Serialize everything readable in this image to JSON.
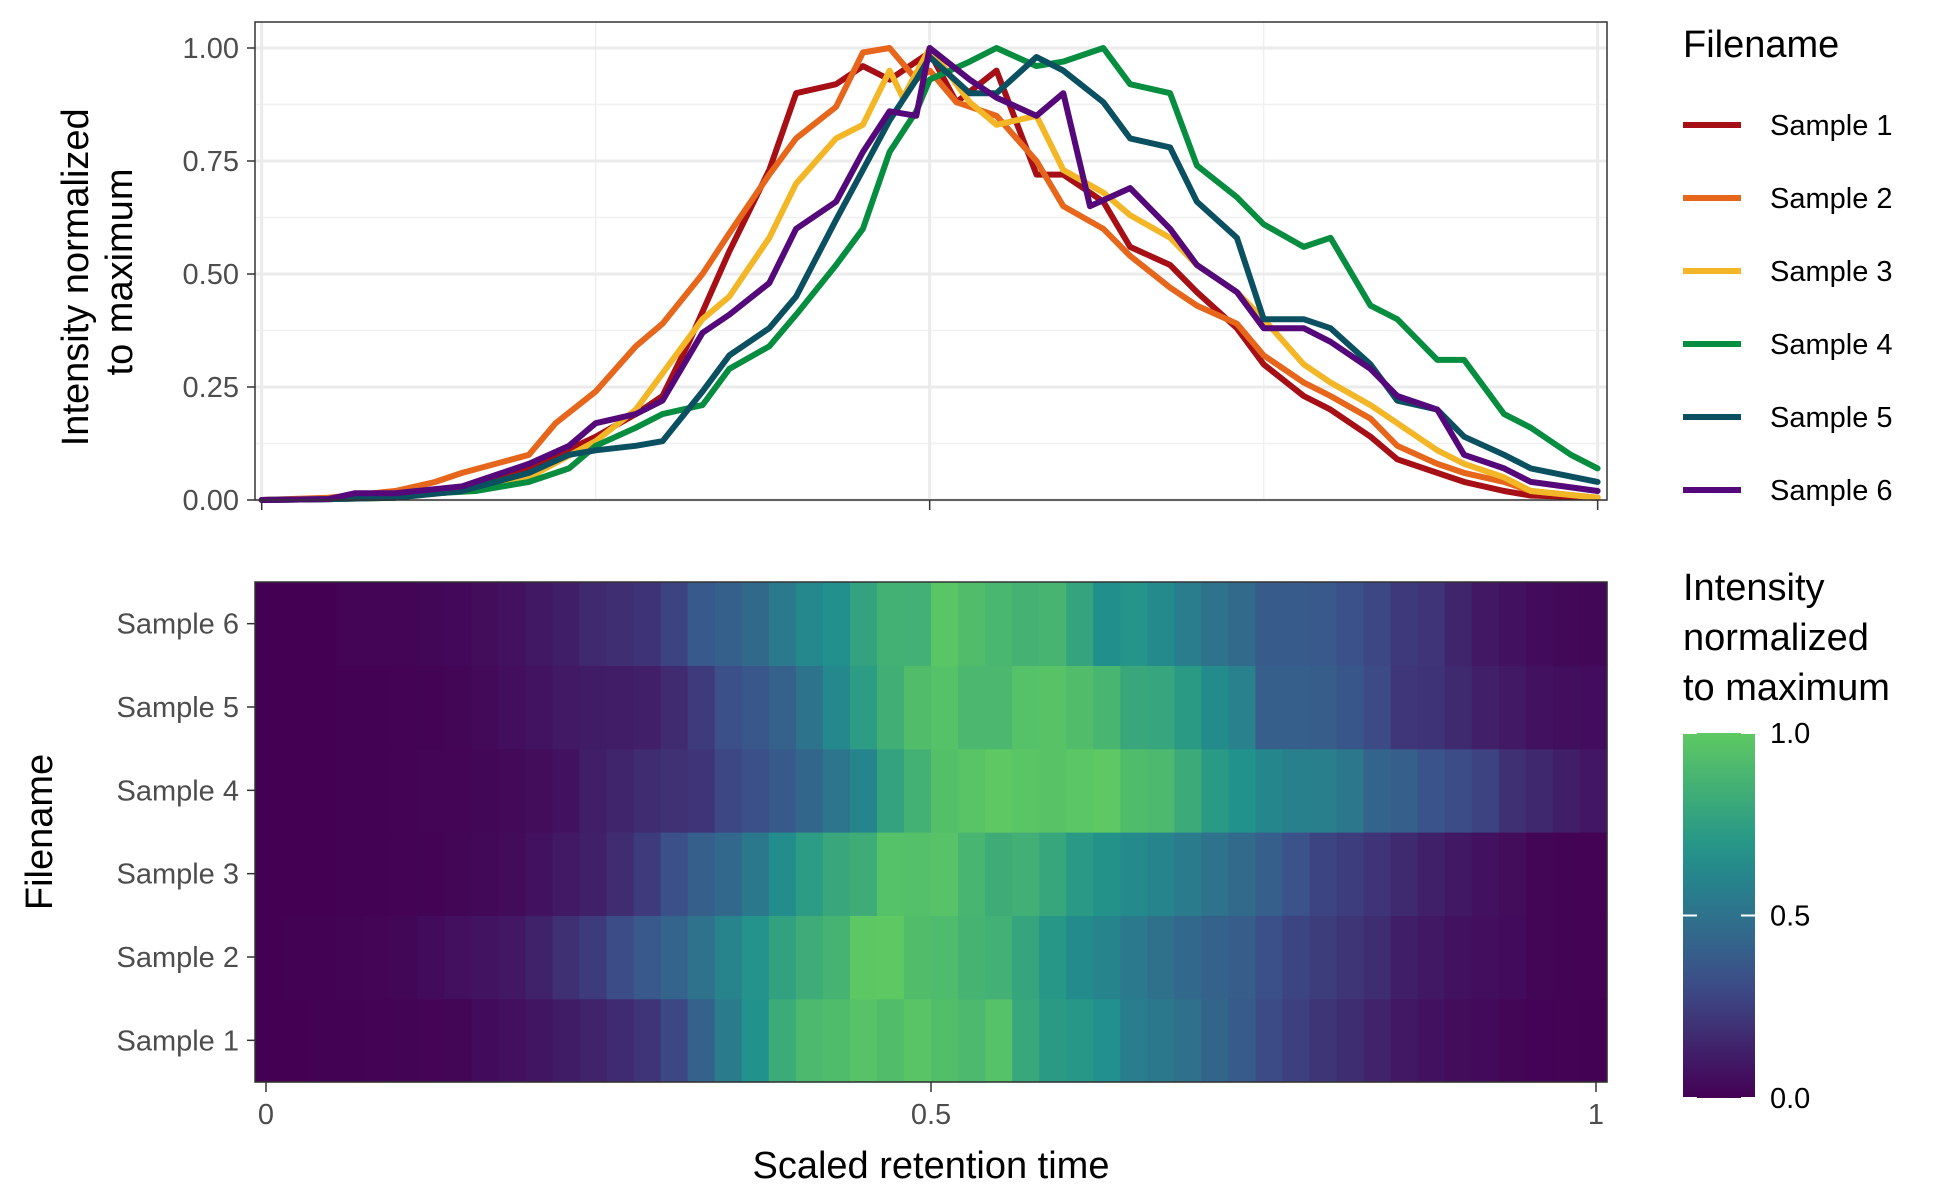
{
  "chart_data": [
    {
      "type": "line",
      "ylabel": [
        "Intensity normalized",
        "to maximum"
      ],
      "xlim": [
        0,
        1
      ],
      "ylim": [
        0,
        1
      ],
      "y_ticks": [
        {
          "v": 0,
          "label": "0.00"
        },
        {
          "v": 0.25,
          "label": "0.25"
        },
        {
          "v": 0.5,
          "label": "0.50"
        },
        {
          "v": 0.75,
          "label": "0.75"
        },
        {
          "v": 1,
          "label": "1.00"
        }
      ],
      "x_breaks": [
        0,
        0.5,
        1
      ],
      "grid": true,
      "legend": {
        "title": "Filename",
        "placement": "right"
      },
      "series": [
        {
          "name": "Sample 1",
          "color": "#a50f15",
          "x": [
            0,
            0.05,
            0.1,
            0.15,
            0.2,
            0.25,
            0.28,
            0.3,
            0.32,
            0.35,
            0.38,
            0.4,
            0.43,
            0.45,
            0.47,
            0.5,
            0.52,
            0.55,
            0.58,
            0.6,
            0.63,
            0.65,
            0.68,
            0.7,
            0.73,
            0.75,
            0.78,
            0.8,
            0.83,
            0.85,
            0.88,
            0.9,
            0.93,
            0.95,
            1
          ],
          "y": [
            0,
            0.003,
            0.01,
            0.02,
            0.07,
            0.14,
            0.19,
            0.23,
            0.35,
            0.55,
            0.73,
            0.9,
            0.92,
            0.96,
            0.93,
            0.99,
            0.88,
            0.95,
            0.72,
            0.72,
            0.66,
            0.56,
            0.52,
            0.46,
            0.38,
            0.3,
            0.23,
            0.2,
            0.14,
            0.09,
            0.06,
            0.04,
            0.02,
            0.01,
            0.005
          ]
        },
        {
          "name": "Sample 2",
          "color": "#e6661b",
          "x": [
            0,
            0.05,
            0.1,
            0.13,
            0.15,
            0.2,
            0.22,
            0.25,
            0.28,
            0.3,
            0.33,
            0.35,
            0.38,
            0.4,
            0.43,
            0.45,
            0.47,
            0.49,
            0.5,
            0.52,
            0.55,
            0.58,
            0.6,
            0.63,
            0.65,
            0.68,
            0.7,
            0.73,
            0.75,
            0.78,
            0.8,
            0.83,
            0.85,
            0.88,
            0.9,
            0.93,
            0.95,
            1
          ],
          "y": [
            0,
            0.005,
            0.02,
            0.04,
            0.06,
            0.1,
            0.17,
            0.24,
            0.34,
            0.39,
            0.5,
            0.59,
            0.72,
            0.8,
            0.87,
            0.99,
            1.0,
            0.93,
            0.95,
            0.88,
            0.85,
            0.75,
            0.65,
            0.6,
            0.54,
            0.47,
            0.43,
            0.39,
            0.32,
            0.26,
            0.23,
            0.18,
            0.12,
            0.08,
            0.06,
            0.04,
            0.02,
            0.005
          ]
        },
        {
          "name": "Sample 3",
          "color": "#f3b627",
          "x": [
            0,
            0.05,
            0.1,
            0.15,
            0.2,
            0.25,
            0.28,
            0.3,
            0.33,
            0.35,
            0.38,
            0.4,
            0.43,
            0.45,
            0.47,
            0.48,
            0.5,
            0.53,
            0.55,
            0.58,
            0.6,
            0.63,
            0.65,
            0.68,
            0.7,
            0.73,
            0.75,
            0.78,
            0.8,
            0.83,
            0.85,
            0.88,
            0.9,
            0.93,
            0.95,
            1
          ],
          "y": [
            0,
            0.002,
            0.005,
            0.02,
            0.05,
            0.13,
            0.2,
            0.28,
            0.4,
            0.45,
            0.58,
            0.7,
            0.8,
            0.83,
            0.95,
            0.89,
            1.0,
            0.88,
            0.83,
            0.85,
            0.73,
            0.68,
            0.63,
            0.58,
            0.52,
            0.46,
            0.4,
            0.3,
            0.26,
            0.21,
            0.17,
            0.11,
            0.08,
            0.05,
            0.02,
            0.005
          ]
        },
        {
          "name": "Sample 4",
          "color": "#078d3f",
          "x": [
            0,
            0.05,
            0.1,
            0.13,
            0.16,
            0.2,
            0.23,
            0.25,
            0.28,
            0.3,
            0.33,
            0.35,
            0.38,
            0.4,
            0.43,
            0.45,
            0.47,
            0.49,
            0.5,
            0.53,
            0.55,
            0.58,
            0.6,
            0.63,
            0.65,
            0.68,
            0.7,
            0.73,
            0.75,
            0.78,
            0.8,
            0.83,
            0.85,
            0.88,
            0.9,
            0.93,
            0.95,
            0.98,
            1
          ],
          "y": [
            0,
            0.002,
            0.005,
            0.015,
            0.02,
            0.04,
            0.07,
            0.12,
            0.16,
            0.19,
            0.21,
            0.29,
            0.34,
            0.41,
            0.52,
            0.6,
            0.77,
            0.86,
            0.93,
            0.97,
            1.0,
            0.96,
            0.97,
            1.0,
            0.92,
            0.9,
            0.74,
            0.67,
            0.61,
            0.56,
            0.58,
            0.43,
            0.4,
            0.31,
            0.31,
            0.19,
            0.16,
            0.1,
            0.07
          ]
        },
        {
          "name": "Sample 5",
          "color": "#0b5060",
          "x": [
            0,
            0.05,
            0.1,
            0.15,
            0.2,
            0.23,
            0.25,
            0.28,
            0.3,
            0.33,
            0.35,
            0.38,
            0.4,
            0.43,
            0.45,
            0.47,
            0.49,
            0.5,
            0.53,
            0.55,
            0.58,
            0.6,
            0.63,
            0.65,
            0.68,
            0.7,
            0.73,
            0.75,
            0.78,
            0.8,
            0.83,
            0.85,
            0.88,
            0.9,
            0.93,
            0.95,
            1
          ],
          "y": [
            0,
            0.002,
            0.005,
            0.02,
            0.06,
            0.1,
            0.11,
            0.12,
            0.13,
            0.24,
            0.32,
            0.38,
            0.45,
            0.62,
            0.73,
            0.84,
            0.93,
            0.98,
            0.9,
            0.9,
            0.98,
            0.95,
            0.88,
            0.8,
            0.78,
            0.66,
            0.58,
            0.4,
            0.4,
            0.38,
            0.3,
            0.22,
            0.2,
            0.14,
            0.1,
            0.07,
            0.04
          ]
        },
        {
          "name": "Sample 6",
          "color": "#54087a",
          "x": [
            0,
            0.05,
            0.07,
            0.1,
            0.15,
            0.2,
            0.23,
            0.25,
            0.28,
            0.3,
            0.33,
            0.35,
            0.38,
            0.4,
            0.43,
            0.45,
            0.47,
            0.49,
            0.5,
            0.53,
            0.55,
            0.58,
            0.6,
            0.62,
            0.65,
            0.68,
            0.7,
            0.73,
            0.75,
            0.78,
            0.8,
            0.83,
            0.85,
            0.88,
            0.9,
            0.93,
            0.95,
            1
          ],
          "y": [
            0,
            0.002,
            0.015,
            0.015,
            0.03,
            0.08,
            0.12,
            0.17,
            0.19,
            0.22,
            0.37,
            0.41,
            0.48,
            0.6,
            0.66,
            0.77,
            0.86,
            0.85,
            1.0,
            0.93,
            0.89,
            0.85,
            0.9,
            0.65,
            0.69,
            0.6,
            0.52,
            0.46,
            0.38,
            0.38,
            0.35,
            0.29,
            0.23,
            0.2,
            0.1,
            0.07,
            0.04,
            0.02
          ]
        }
      ]
    },
    {
      "type": "heatmap",
      "xlabel": "Scaled retention time",
      "ylabel": "Filename",
      "x_ticks": [
        {
          "v": 0,
          "label": "0"
        },
        {
          "v": 0.5,
          "label": "0.5"
        },
        {
          "v": 1,
          "label": "1"
        }
      ],
      "rows": [
        "Sample 1",
        "Sample 2",
        "Sample 3",
        "Sample 4",
        "Sample 5",
        "Sample 6"
      ],
      "colorbar": {
        "title": [
          "Intensity",
          "normalized",
          "to maximum"
        ],
        "range": [
          0,
          1
        ],
        "ticks": [
          {
            "v": 0,
            "label": "0.0"
          },
          {
            "v": 0.5,
            "label": "0.5"
          },
          {
            "v": 1,
            "label": "1.0"
          }
        ],
        "colors": [
          "#440154",
          "#3b528b",
          "#21918c",
          "#5ec962"
        ]
      },
      "bins": 50
    }
  ]
}
